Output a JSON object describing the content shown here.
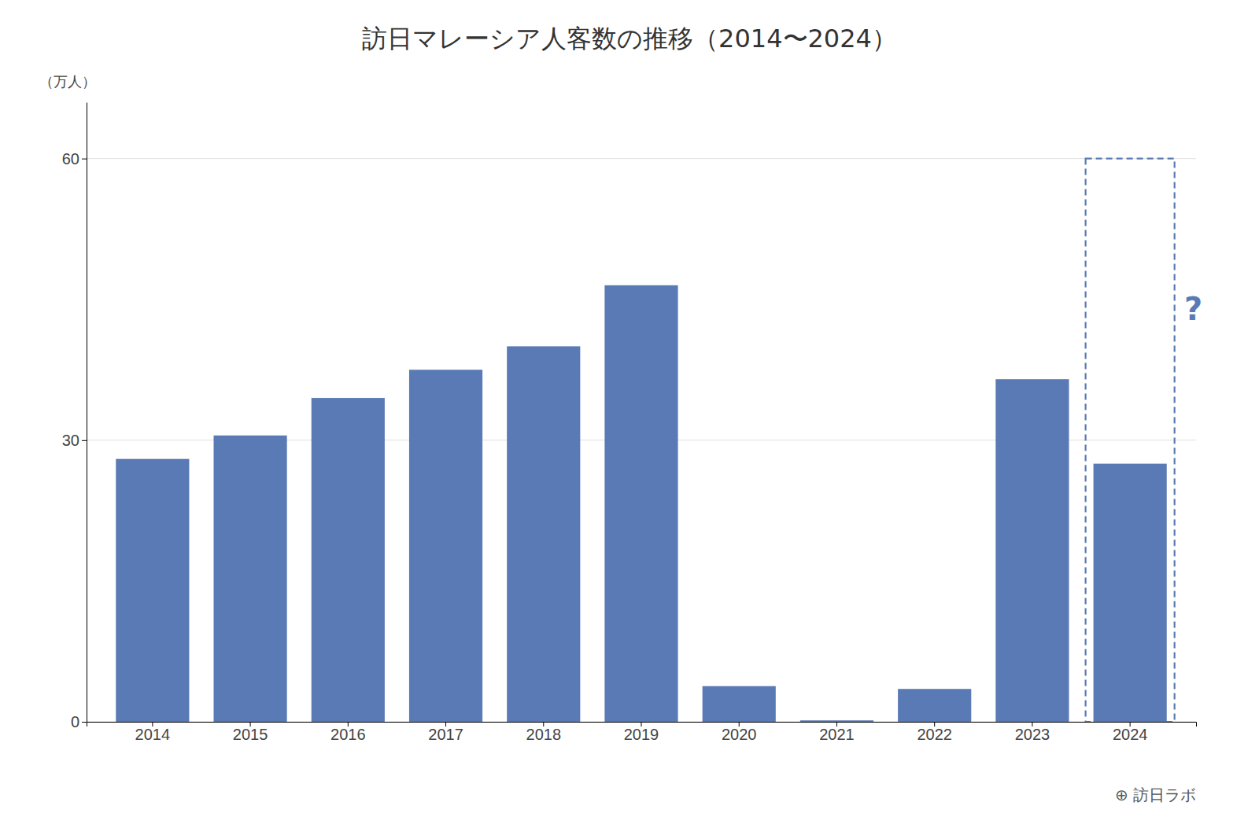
{
  "chart_data": {
    "type": "bar",
    "title": "訪日マレーシア人客数の推移（2014〜2024）",
    "ylabel": "（万人）",
    "categories": [
      "2014",
      "2015",
      "2016",
      "2017",
      "2018",
      "2019",
      "2020",
      "2021",
      "2022",
      "2023",
      "2024"
    ],
    "values": [
      28.0,
      30.5,
      34.5,
      37.5,
      40.0,
      46.5,
      3.8,
      0.15,
      3.5,
      36.5,
      27.5
    ],
    "color": "#5a7ab5",
    "ylim": [
      0,
      66
    ],
    "yticks": [
      0,
      30,
      60
    ],
    "grid": true,
    "annotations": [
      "?",
      "⊕ 訪日ラボ"
    ]
  }
}
